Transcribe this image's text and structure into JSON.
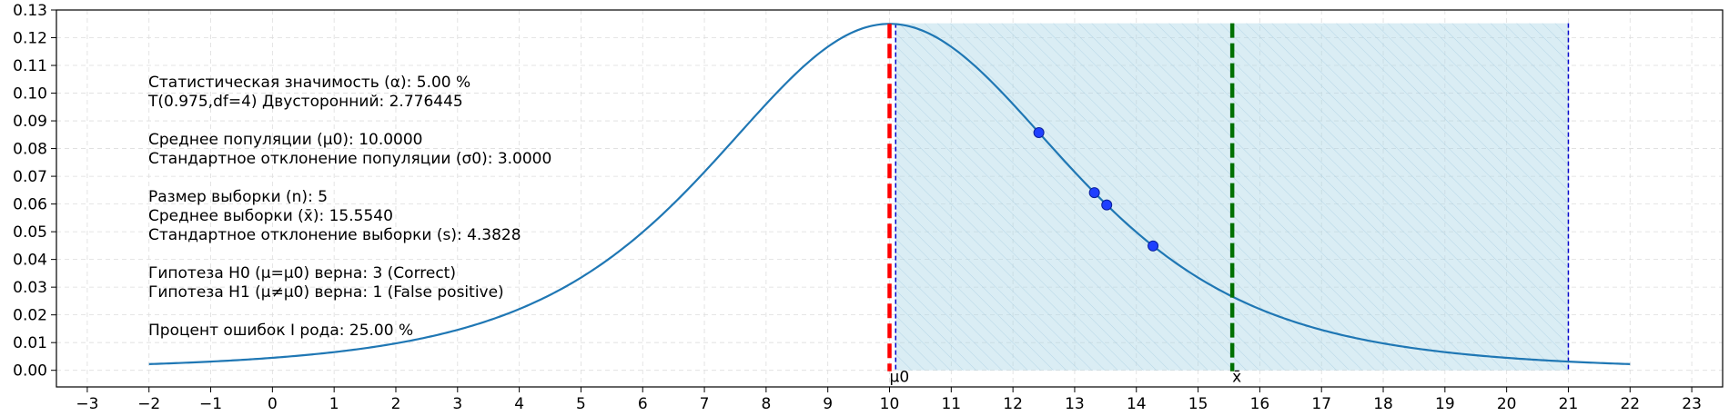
{
  "chart_data": {
    "type": "line",
    "xlim": [
      -3.5,
      23.5
    ],
    "ylim": [
      -0.006,
      0.13
    ],
    "x_ticks": [
      -3,
      -2,
      -1,
      0,
      1,
      2,
      3,
      4,
      5,
      6,
      7,
      8,
      9,
      10,
      11,
      12,
      13,
      14,
      15,
      16,
      17,
      18,
      19,
      20,
      21,
      22,
      23
    ],
    "y_ticks": [
      0.0,
      0.01,
      0.02,
      0.03,
      0.04,
      0.05,
      0.06,
      0.07,
      0.08,
      0.09,
      0.1,
      0.11,
      0.12,
      0.13
    ],
    "grid": true,
    "curve": {
      "distribution": "t",
      "df": 4,
      "loc": 10,
      "scale": 3,
      "x_range": [
        -2,
        22
      ],
      "color": "#1f77b4"
    },
    "shaded_region": {
      "x": [
        10.1,
        21
      ],
      "y_top": 0.1252,
      "fill": "#add8e6",
      "hatch": true,
      "edge_color": "#0000cc"
    },
    "vlines": [
      {
        "x": 10,
        "color": "#ff0000",
        "style": "dashed",
        "label": "μ0"
      },
      {
        "x": 15.554,
        "color": "#007000",
        "style": "dashed",
        "label": "x̄"
      }
    ],
    "sample_points": {
      "x": [
        12.42,
        13.32,
        13.52,
        14.27
      ],
      "color": "#1f3fff"
    },
    "info_text": [
      "Статистическая значимость (α): 5.00 %",
      "T(0.975,df=4) Двусторонний: 2.776445",
      "",
      "Среднее популяции (μ0): 10.0000",
      "Стандартное отклонение популяции (σ0): 3.0000",
      "",
      "Размер выборки (n): 5",
      "Среднее выборки (x̄): 15.5540",
      "Стандартное отклонение выборки (s): 4.3828",
      "",
      "Гипотеза H0 (μ=μ0) верна: 3 (Correct)",
      "Гипотеза H1 (μ≠μ0) верна: 1 (False positive)",
      "",
      "Процент ошибок I рода: 25.00 %"
    ]
  }
}
